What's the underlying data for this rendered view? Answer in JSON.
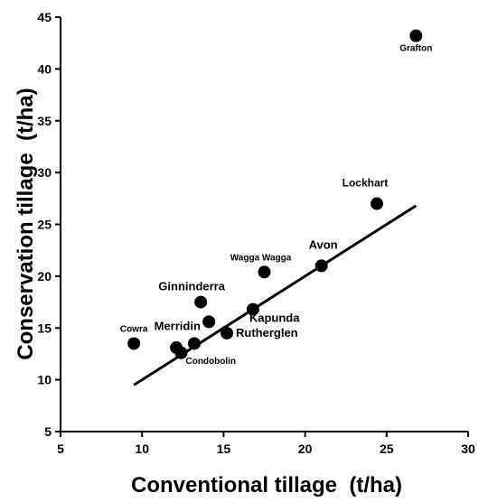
{
  "chart_data": {
    "type": "scatter",
    "title": "",
    "xlabel": "Conventional tillage  (t/ha)",
    "ylabel": "Conservation tillage  (t/ha)",
    "xlim": [
      5,
      30
    ],
    "ylim": [
      5,
      45
    ],
    "xticks": [
      5,
      10,
      15,
      20,
      25,
      30
    ],
    "yticks": [
      5,
      10,
      15,
      20,
      25,
      30,
      35,
      40,
      45
    ],
    "grid": false,
    "points": [
      {
        "label": "Grafton",
        "x": 26.8,
        "y": 43.2
      },
      {
        "label": "Lockhart",
        "x": 24.4,
        "y": 27.0
      },
      {
        "label": "Avon",
        "x": 21.0,
        "y": 21.0
      },
      {
        "label": "Wagga Wagga",
        "x": 17.5,
        "y": 20.4
      },
      {
        "label": "Ginninderra",
        "x": 13.6,
        "y": 17.5
      },
      {
        "label": "",
        "x": 14.1,
        "y": 15.6
      },
      {
        "label": "Kapunda",
        "x": 16.8,
        "y": 16.8
      },
      {
        "label": "Rutherglen",
        "x": 15.2,
        "y": 14.5
      },
      {
        "label": "Merridin",
        "x": 13.2,
        "y": 13.5
      },
      {
        "label": "",
        "x": 12.1,
        "y": 13.1
      },
      {
        "label": "Condobolin",
        "x": 12.4,
        "y": 12.6
      },
      {
        "label": "Cowra",
        "x": 9.5,
        "y": 13.5
      }
    ],
    "trendline": {
      "x": [
        9.5,
        26.8
      ],
      "y": [
        9.5,
        26.8
      ]
    }
  }
}
